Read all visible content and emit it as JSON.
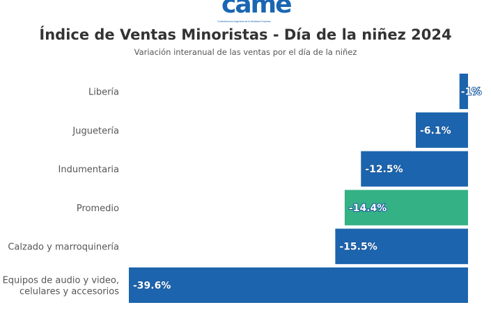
{
  "logo": {
    "text": "came",
    "subtitle": "Confederación Argentina de la Mediana Empresa"
  },
  "colors": {
    "bar": "#1c64ad",
    "highlight": "#34b185"
  },
  "chart_data": {
    "type": "bar",
    "orientation": "horizontal",
    "title": "Índice de Ventas Minoristas - Día de la niñez 2024",
    "subtitle": "Variación interanual de las ventas por el día de la niñez",
    "xlabel": "",
    "ylabel": "",
    "categories": [
      [
        "Libería"
      ],
      [
        "Juguetería"
      ],
      [
        "Indumentaria"
      ],
      [
        "Promedio"
      ],
      [
        "Calzado y marroquinería"
      ],
      [
        "Equipos de audio y video,",
        "celulares y accesorios"
      ]
    ],
    "values": [
      -1,
      -6.1,
      -12.5,
      -14.4,
      -15.5,
      -39.6
    ],
    "value_labels": [
      "-1%",
      "-6.1%",
      "-12.5%",
      "-14.4%",
      "-15.5%",
      "-39.6%"
    ],
    "highlight_index": 3,
    "xlim": [
      -39.6,
      0
    ],
    "grid": false,
    "legend": "none"
  }
}
